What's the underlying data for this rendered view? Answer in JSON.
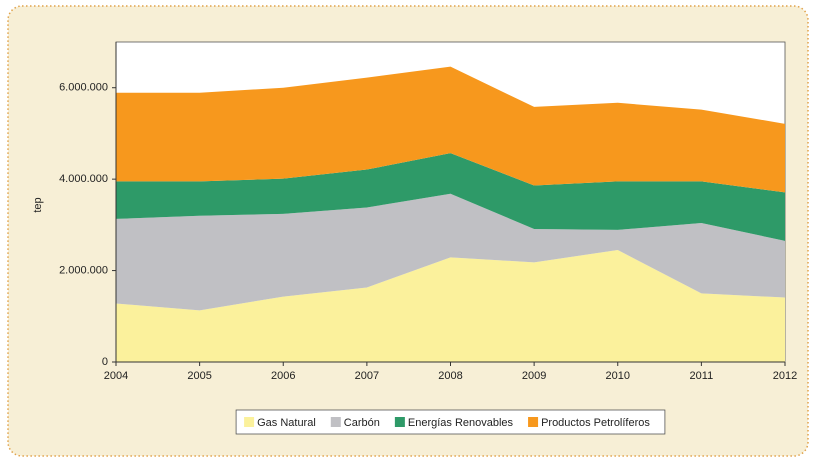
{
  "chart_data": {
    "type": "stacked_area",
    "y_label": "tep",
    "categories": [
      "2004",
      "2005",
      "2006",
      "2007",
      "2008",
      "2009",
      "2010",
      "2011",
      "2012"
    ],
    "series": [
      {
        "name": "Gas Natural",
        "color": "#fbf19c",
        "values": [
          1280000,
          1130000,
          1430000,
          1630000,
          2290000,
          2180000,
          2450000,
          1500000,
          1410000
        ]
      },
      {
        "name": "Carbón",
        "color": "#c0c0c4",
        "values": [
          1850000,
          2070000,
          1810000,
          1750000,
          1390000,
          730000,
          440000,
          1540000,
          1240000
        ]
      },
      {
        "name": "Energías Renovables",
        "color": "#2e9a68",
        "values": [
          820000,
          750000,
          770000,
          830000,
          890000,
          950000,
          1060000,
          910000,
          1060000
        ]
      },
      {
        "name": "Productos Petrolíferos",
        "color": "#f7981d",
        "values": [
          1940000,
          1940000,
          1990000,
          2010000,
          1890000,
          1720000,
          1720000,
          1570000,
          1500000
        ]
      }
    ],
    "ylim": [
      0,
      7000000
    ],
    "yticks": [
      0,
      {
        "value": 2000000,
        "label": "2.000.000"
      },
      {
        "value": 4000000,
        "label": "4.000.000"
      },
      {
        "value": 6000000,
        "label": "6.000.000"
      }
    ],
    "legend": "bottom"
  }
}
